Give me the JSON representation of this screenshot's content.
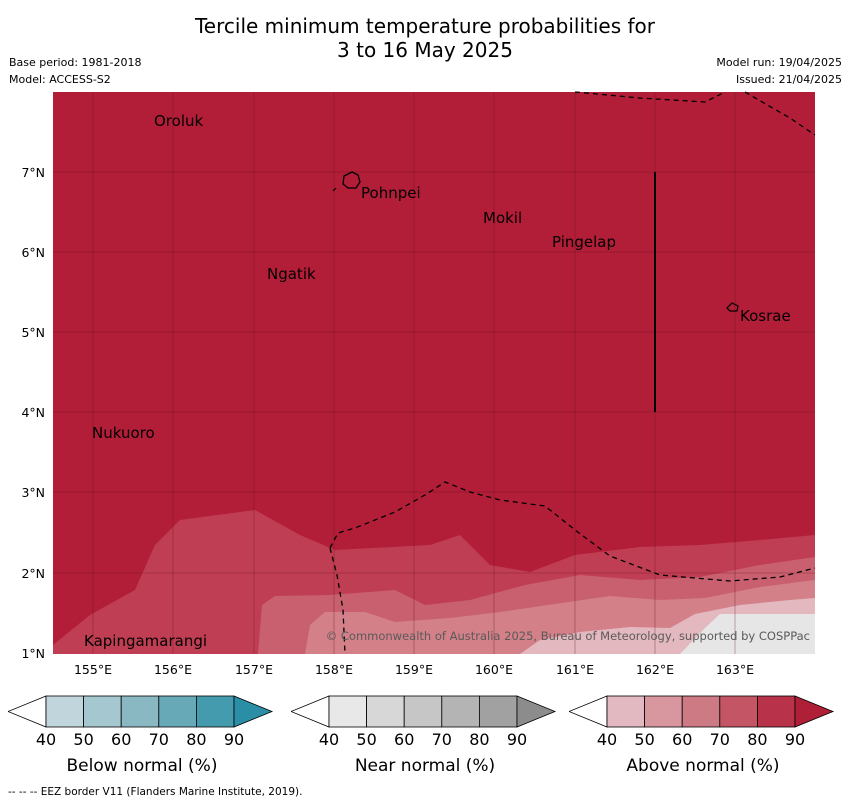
{
  "title_line1": "Tercile minimum temperature probabilities for",
  "title_line2": "3 to 16 May 2025",
  "base_period": "Base period: 1981-2018",
  "model": "Model: ACCESS-S2",
  "model_run": "Model run: 19/04/2025",
  "issued": "Issued: 21/04/2025",
  "copyright": "© Commonwealth of Australia 2025, Bureau of Meteorology, supported by COSPPac",
  "footer": "--  --  -- EEZ border V11 (Flanders Marine Institute, 2019).",
  "lat_labels": [
    "7°N",
    "6°N",
    "5°N",
    "4°N",
    "3°N",
    "2°N",
    "1°N"
  ],
  "lon_labels": [
    "155°E",
    "156°E",
    "157°E",
    "158°E",
    "159°E",
    "160°E",
    "161°E",
    "162°E",
    "163°E"
  ],
  "places": [
    {
      "name": "Oroluk",
      "lon": 155.7,
      "lat": 7.6
    },
    {
      "name": "Pohnpei",
      "lon": 158.35,
      "lat": 6.85
    },
    {
      "name": "Mokil",
      "lon": 159.85,
      "lat": 6.4
    },
    {
      "name": "Pingelap",
      "lon": 160.75,
      "lat": 6.12
    },
    {
      "name": "Ngatik",
      "lon": 157.15,
      "lat": 5.72
    },
    {
      "name": "Kosrae",
      "lon": 162.95,
      "lat": 5.28
    },
    {
      "name": "Nukuoro",
      "lon": 154.95,
      "lat": 3.72
    },
    {
      "name": "Kapingamarangi",
      "lon": 154.8,
      "lat": 1.1
    }
  ],
  "colorbars": [
    {
      "label": "Below normal (%)",
      "ticks": [
        "40",
        "50",
        "60",
        "70",
        "80",
        "90"
      ],
      "colors": [
        "#c1d6dc",
        "#a5c7cf",
        "#89b7c2",
        "#68a9b8",
        "#459bae",
        "#2a8ea6"
      ]
    },
    {
      "label": "Near normal (%)",
      "ticks": [
        "40",
        "50",
        "60",
        "70",
        "80",
        "90"
      ],
      "colors": [
        "#e8e8e8",
        "#d7d7d7",
        "#c6c6c6",
        "#b4b4b4",
        "#a1a1a1",
        "#8c8c8c"
      ]
    },
    {
      "label": "Above normal (%)",
      "ticks": [
        "40",
        "50",
        "60",
        "70",
        "80",
        "90"
      ],
      "colors": [
        "#e2b8c1",
        "#d8969f",
        "#ce7a84",
        "#c45565",
        "#b8324a",
        "#b01f38"
      ]
    }
  ],
  "colors": {
    "map_dominant": "#b21e38",
    "band_70": "#c03e53",
    "band_60": "#c9606f",
    "band_50": "#d38089",
    "band_40": "#e3b8bf",
    "grid": "#5c0d1a"
  }
}
